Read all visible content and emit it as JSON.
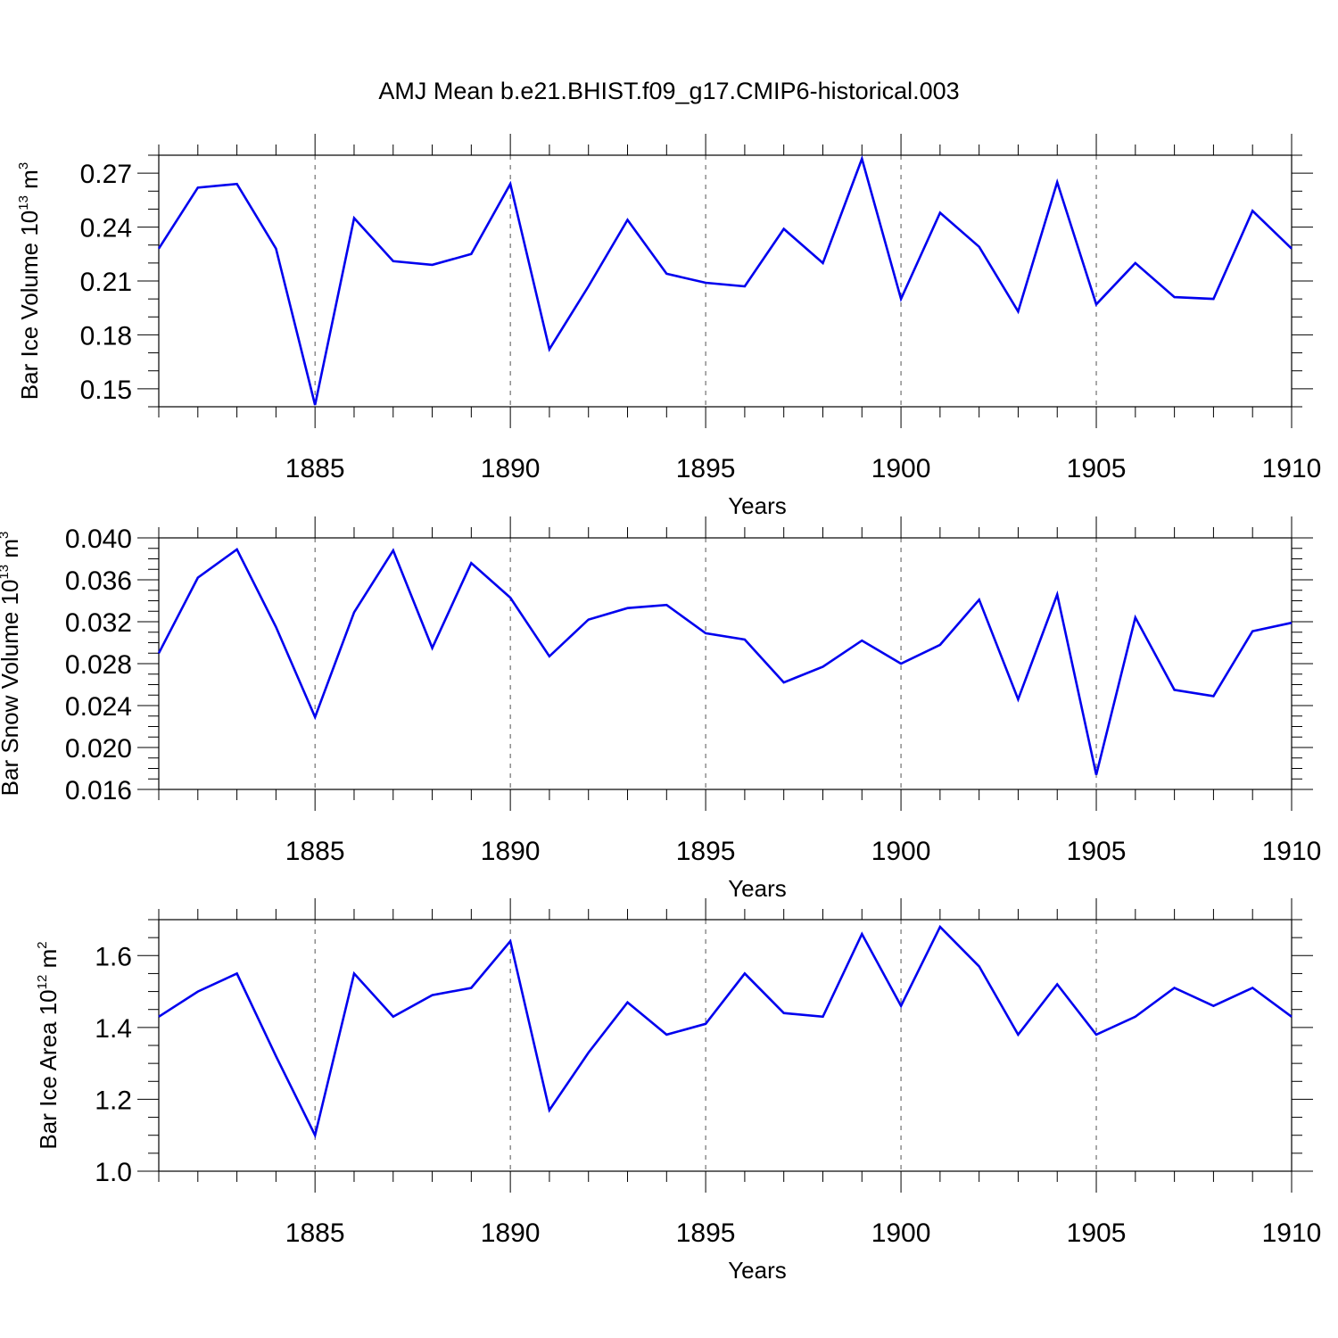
{
  "figure": {
    "title": "AMJ Mean b.e21.BHIST.f09_g17.CMIP6-historical.003"
  },
  "chart_data": [
    {
      "type": "line",
      "title": "AMJ Mean b.e21.BHIST.f09_g17.CMIP6-historical.003",
      "ylabel_main": "Bar Ice Volume 10",
      "ylabel_exp": "13",
      "ylabel_unit": " m",
      "ylabel_unit_exp": "3",
      "xlabel": "Years",
      "xlim": [
        1881,
        1910
      ],
      "ylim": [
        0.14,
        0.28
      ],
      "yticks": [
        0.15,
        0.18,
        0.21,
        0.24,
        0.27
      ],
      "yticklabels": [
        "0.15",
        "0.18",
        "0.21",
        "0.24",
        "0.27"
      ],
      "yminor_step": 0.01,
      "xticks": [
        1885,
        1890,
        1895,
        1900,
        1905,
        1910
      ],
      "xticklabels": [
        "1885",
        "1890",
        "1895",
        "1900",
        "1905",
        "1910"
      ],
      "grid": "vertical dashed at major x ticks",
      "color": "#0000ee",
      "series": [
        {
          "name": "Bar Ice Volume",
          "x": [
            1881,
            1882,
            1883,
            1884,
            1885,
            1886,
            1887,
            1888,
            1889,
            1890,
            1891,
            1892,
            1893,
            1894,
            1895,
            1896,
            1897,
            1898,
            1899,
            1900,
            1901,
            1902,
            1903,
            1904,
            1905,
            1906,
            1907,
            1908,
            1909,
            1910
          ],
          "values": [
            0.228,
            0.262,
            0.264,
            0.228,
            0.141,
            0.245,
            0.221,
            0.219,
            0.225,
            0.264,
            0.172,
            0.207,
            0.244,
            0.214,
            0.209,
            0.207,
            0.239,
            0.22,
            0.278,
            0.2,
            0.248,
            0.229,
            0.193,
            0.265,
            0.197,
            0.22,
            0.201,
            0.2,
            0.249,
            0.228
          ]
        }
      ]
    },
    {
      "type": "line",
      "ylabel_main": "Bar Snow Volume 10",
      "ylabel_exp": "13",
      "ylabel_unit": " m",
      "ylabel_unit_exp": "3",
      "xlabel": "Years",
      "xlim": [
        1881,
        1910
      ],
      "ylim": [
        0.016,
        0.04
      ],
      "yticks": [
        0.016,
        0.02,
        0.024,
        0.028,
        0.032,
        0.036,
        0.04
      ],
      "yticklabels": [
        "0.016",
        "0.020",
        "0.024",
        "0.028",
        "0.032",
        "0.036",
        "0.040"
      ],
      "yminor_step": 0.001,
      "xticks": [
        1885,
        1890,
        1895,
        1900,
        1905,
        1910
      ],
      "xticklabels": [
        "1885",
        "1890",
        "1895",
        "1900",
        "1905",
        "1910"
      ],
      "grid": "vertical dashed at major x ticks",
      "color": "#0000ee",
      "series": [
        {
          "name": "Bar Snow Volume",
          "x": [
            1881,
            1882,
            1883,
            1884,
            1885,
            1886,
            1887,
            1888,
            1889,
            1890,
            1891,
            1892,
            1893,
            1894,
            1895,
            1896,
            1897,
            1898,
            1899,
            1900,
            1901,
            1902,
            1903,
            1904,
            1905,
            1906,
            1907,
            1908,
            1909,
            1910
          ],
          "values": [
            0.029,
            0.0362,
            0.0389,
            0.0315,
            0.0229,
            0.0329,
            0.0388,
            0.0295,
            0.0376,
            0.0343,
            0.0287,
            0.0322,
            0.0333,
            0.0336,
            0.0309,
            0.0303,
            0.0262,
            0.0277,
            0.0302,
            0.028,
            0.0298,
            0.0341,
            0.0246,
            0.0346,
            0.0174,
            0.0324,
            0.0255,
            0.0249,
            0.0311,
            0.0319
          ]
        }
      ]
    },
    {
      "type": "line",
      "ylabel_main": "Bar Ice Area 10",
      "ylabel_exp": "12",
      "ylabel_unit": " m",
      "ylabel_unit_exp": "2",
      "xlabel": "Years",
      "xlim": [
        1881,
        1910
      ],
      "ylim": [
        1.0,
        1.7
      ],
      "yticks": [
        1.0,
        1.2,
        1.4,
        1.6
      ],
      "yticklabels": [
        "1.0",
        "1.2",
        "1.4",
        "1.6"
      ],
      "yminor_step": 0.05,
      "xticks": [
        1885,
        1890,
        1895,
        1900,
        1905,
        1910
      ],
      "xticklabels": [
        "1885",
        "1890",
        "1895",
        "1900",
        "1905",
        "1910"
      ],
      "grid": "vertical dashed at major x ticks",
      "color": "#0000ee",
      "series": [
        {
          "name": "Bar Ice Area",
          "x": [
            1881,
            1882,
            1883,
            1884,
            1885,
            1886,
            1887,
            1888,
            1889,
            1890,
            1891,
            1892,
            1893,
            1894,
            1895,
            1896,
            1897,
            1898,
            1899,
            1900,
            1901,
            1902,
            1903,
            1904,
            1905,
            1906,
            1907,
            1908,
            1909,
            1910
          ],
          "values": [
            1.43,
            1.5,
            1.55,
            1.32,
            1.1,
            1.55,
            1.43,
            1.49,
            1.51,
            1.64,
            1.17,
            1.33,
            1.47,
            1.38,
            1.41,
            1.55,
            1.44,
            1.43,
            1.66,
            1.46,
            1.68,
            1.57,
            1.38,
            1.52,
            1.38,
            1.43,
            1.51,
            1.46,
            1.51,
            1.43
          ]
        }
      ]
    }
  ]
}
